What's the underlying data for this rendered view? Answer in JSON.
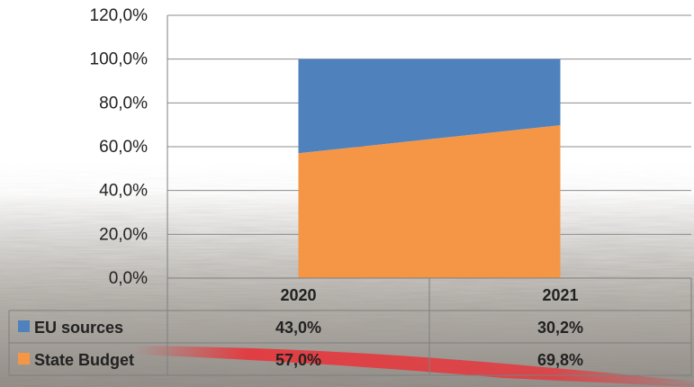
{
  "chart_data": {
    "type": "area",
    "stacked": true,
    "categories": [
      "2020",
      "2021"
    ],
    "series": [
      {
        "name": "State Budget",
        "values": [
          57.0,
          69.8
        ],
        "labels": [
          "57,0%",
          "69,8%"
        ],
        "color": "#f59646"
      },
      {
        "name": "EU sources",
        "values": [
          43.0,
          30.2
        ],
        "labels": [
          "43,0%",
          "30,2%"
        ],
        "color": "#4f81bd"
      }
    ],
    "yticks": [
      "0,0%",
      "20,0%",
      "40,0%",
      "60,0%",
      "80,0%",
      "100,0%",
      "120,0%"
    ],
    "ylim": [
      0,
      120
    ],
    "y_unit": "%",
    "grid": true,
    "legend": "data-table"
  },
  "theme": {
    "axis_color": "#7f7f7f",
    "grid_color": "#8c8c8c",
    "text_color": "#222222",
    "stripe_color": "#e8343a"
  }
}
